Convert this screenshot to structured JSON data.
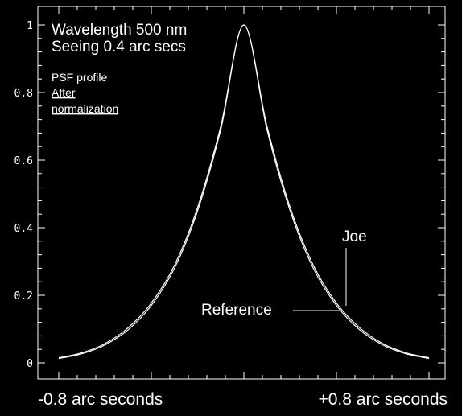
{
  "chart_data": {
    "type": "line",
    "annotations": {
      "title_line1": "Wavelength 500 nm",
      "title_line2": "Seeing 0.4 arc secs",
      "note_line1": "PSF profile",
      "note_line2": "After",
      "note_line3": "normalization",
      "xlabel_left": "-0.8 arc seconds",
      "xlabel_right": "+0.8 arc seconds"
    },
    "ylim": [
      0,
      1
    ],
    "xlim": [
      -0.8,
      0.8
    ],
    "yticks": [
      "0",
      "0.2",
      "0.4",
      "0.6",
      "0.8",
      "1"
    ],
    "series": [
      {
        "name": "Reference",
        "x": [
          -0.8,
          -0.7,
          -0.6,
          -0.5,
          -0.4,
          -0.3,
          -0.2,
          -0.1,
          0.0,
          0.1,
          0.2,
          0.3,
          0.4,
          0.5,
          0.6,
          0.7,
          0.8
        ],
        "values": [
          0.013,
          0.027,
          0.053,
          0.098,
          0.17,
          0.28,
          0.45,
          0.69,
          1.0,
          0.69,
          0.45,
          0.28,
          0.17,
          0.098,
          0.053,
          0.027,
          0.013
        ],
        "color": "#ffffff"
      },
      {
        "name": "Joe",
        "x": [
          -0.8,
          -0.7,
          -0.6,
          -0.5,
          -0.4,
          -0.3,
          -0.2,
          -0.1,
          0.0,
          0.1,
          0.2,
          0.3,
          0.4,
          0.5,
          0.6,
          0.7,
          0.8
        ],
        "values": [
          0.015,
          0.03,
          0.057,
          0.104,
          0.177,
          0.289,
          0.46,
          0.7,
          1.0,
          0.7,
          0.46,
          0.289,
          0.177,
          0.104,
          0.057,
          0.03,
          0.015
        ],
        "color": "#ffffff"
      }
    ],
    "grid": false,
    "style": {
      "background": "#000000",
      "foreground": "#ffffff"
    }
  }
}
